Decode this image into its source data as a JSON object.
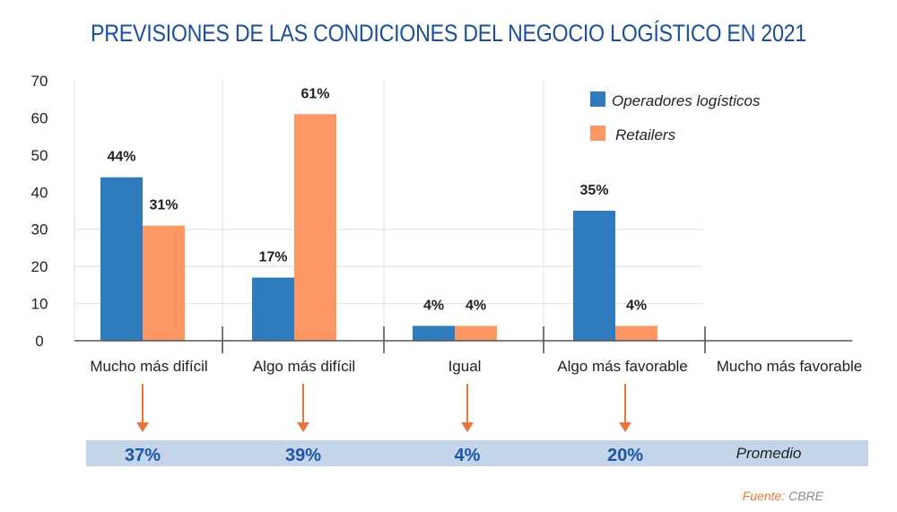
{
  "chart_data": {
    "type": "bar",
    "title": "PREVISIONES DE LAS CONDICIONES DEL NEGOCIO LOGÍSTICO EN 2021",
    "categories": [
      "Mucho más difícil",
      "Algo más difícil",
      "Igual",
      "Algo más favorable",
      "Mucho más favorable"
    ],
    "series": [
      {
        "name": "Operadores logísticos",
        "color": "#2e7bbd",
        "values": [
          44,
          17,
          4,
          35,
          null
        ],
        "labels": [
          "44%",
          "17%",
          "4%",
          "35%",
          ""
        ]
      },
      {
        "name": "Retailers",
        "color": "#fd9763",
        "values": [
          31,
          61,
          4,
          4,
          null
        ],
        "labels": [
          "31%",
          "61%",
          "4%",
          "4%",
          ""
        ]
      }
    ],
    "ylim": [
      0,
      70
    ],
    "yticks": [
      0,
      10,
      20,
      30,
      40,
      50,
      60,
      70
    ],
    "gridlines": [
      10,
      20,
      30
    ],
    "xlabel": "",
    "ylabel": "",
    "legend": "top-right",
    "averages": {
      "caption": "Promedio",
      "values": [
        "37%",
        "39%",
        "4%",
        "20%"
      ],
      "arrow_color": "#e8763a",
      "band_color": "#c5d5e9"
    },
    "source": {
      "key": "Fuente:",
      "value": "CBRE"
    }
  }
}
